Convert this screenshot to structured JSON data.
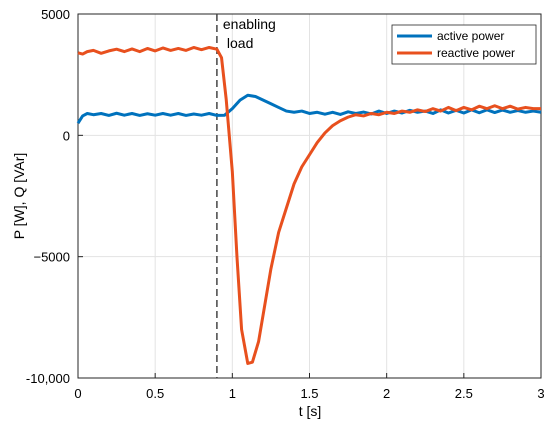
{
  "chart_data": {
    "type": "line",
    "xlabel": "t [s]",
    "ylabel": "P [W], Q [VAr]",
    "xlim": [
      0,
      3
    ],
    "ylim": [
      -10000,
      5000
    ],
    "x_ticks": [
      0,
      0.5,
      1,
      1.5,
      2,
      2.5,
      3
    ],
    "x_tick_labels": [
      "0",
      "0.5",
      "1",
      "1.5",
      "2",
      "2.5",
      "3"
    ],
    "y_ticks": [
      -10000,
      -5000,
      0,
      5000
    ],
    "y_tick_labels": [
      "-10,000",
      "−5000",
      "0",
      "5000"
    ],
    "grid": true,
    "legend_position": "top-right",
    "annotation": {
      "x": 0.9,
      "line1": "enabling",
      "line2": "load"
    },
    "series": [
      {
        "name": "active power",
        "color": "#0072BD",
        "points": [
          [
            0,
            500
          ],
          [
            0.03,
            800
          ],
          [
            0.06,
            900
          ],
          [
            0.1,
            850
          ],
          [
            0.15,
            900
          ],
          [
            0.2,
            820
          ],
          [
            0.25,
            910
          ],
          [
            0.3,
            830
          ],
          [
            0.35,
            900
          ],
          [
            0.4,
            820
          ],
          [
            0.45,
            890
          ],
          [
            0.5,
            830
          ],
          [
            0.55,
            900
          ],
          [
            0.6,
            830
          ],
          [
            0.65,
            900
          ],
          [
            0.7,
            820
          ],
          [
            0.75,
            880
          ],
          [
            0.8,
            830
          ],
          [
            0.85,
            900
          ],
          [
            0.9,
            820
          ],
          [
            0.95,
            830
          ],
          [
            1.0,
            1100
          ],
          [
            1.05,
            1450
          ],
          [
            1.1,
            1650
          ],
          [
            1.15,
            1600
          ],
          [
            1.2,
            1450
          ],
          [
            1.25,
            1300
          ],
          [
            1.3,
            1150
          ],
          [
            1.35,
            1000
          ],
          [
            1.4,
            950
          ],
          [
            1.45,
            1000
          ],
          [
            1.5,
            900
          ],
          [
            1.55,
            950
          ],
          [
            1.6,
            870
          ],
          [
            1.65,
            950
          ],
          [
            1.7,
            860
          ],
          [
            1.75,
            970
          ],
          [
            1.8,
            900
          ],
          [
            1.85,
            960
          ],
          [
            1.9,
            880
          ],
          [
            1.95,
            1000
          ],
          [
            2.0,
            900
          ],
          [
            2.05,
            1000
          ],
          [
            2.1,
            920
          ],
          [
            2.15,
            1030
          ],
          [
            2.2,
            950
          ],
          [
            2.25,
            1000
          ],
          [
            2.3,
            900
          ],
          [
            2.35,
            1050
          ],
          [
            2.4,
            920
          ],
          [
            2.45,
            1030
          ],
          [
            2.5,
            920
          ],
          [
            2.55,
            1050
          ],
          [
            2.6,
            930
          ],
          [
            2.65,
            1050
          ],
          [
            2.7,
            940
          ],
          [
            2.75,
            1040
          ],
          [
            2.8,
            950
          ],
          [
            2.85,
            1020
          ],
          [
            2.9,
            950
          ],
          [
            2.95,
            1000
          ],
          [
            3.0,
            950
          ]
        ]
      },
      {
        "name": "reactive power",
        "color": "#E8501E",
        "points": [
          [
            0,
            3400
          ],
          [
            0.03,
            3350
          ],
          [
            0.06,
            3450
          ],
          [
            0.1,
            3500
          ],
          [
            0.15,
            3380
          ],
          [
            0.2,
            3480
          ],
          [
            0.25,
            3550
          ],
          [
            0.3,
            3450
          ],
          [
            0.35,
            3560
          ],
          [
            0.4,
            3450
          ],
          [
            0.45,
            3580
          ],
          [
            0.5,
            3480
          ],
          [
            0.55,
            3600
          ],
          [
            0.6,
            3500
          ],
          [
            0.65,
            3580
          ],
          [
            0.7,
            3500
          ],
          [
            0.75,
            3620
          ],
          [
            0.8,
            3530
          ],
          [
            0.85,
            3620
          ],
          [
            0.9,
            3550
          ],
          [
            0.93,
            3200
          ],
          [
            0.96,
            1500
          ],
          [
            1.0,
            -1500
          ],
          [
            1.03,
            -5000
          ],
          [
            1.06,
            -8000
          ],
          [
            1.1,
            -9400
          ],
          [
            1.13,
            -9350
          ],
          [
            1.17,
            -8500
          ],
          [
            1.21,
            -7000
          ],
          [
            1.25,
            -5500
          ],
          [
            1.3,
            -4000
          ],
          [
            1.35,
            -3000
          ],
          [
            1.4,
            -2000
          ],
          [
            1.45,
            -1300
          ],
          [
            1.5,
            -800
          ],
          [
            1.55,
            -300
          ],
          [
            1.6,
            100
          ],
          [
            1.65,
            400
          ],
          [
            1.7,
            600
          ],
          [
            1.75,
            750
          ],
          [
            1.8,
            850
          ],
          [
            1.85,
            800
          ],
          [
            1.9,
            900
          ],
          [
            1.95,
            850
          ],
          [
            2.0,
            950
          ],
          [
            2.05,
            900
          ],
          [
            2.1,
            1000
          ],
          [
            2.15,
            950
          ],
          [
            2.2,
            1050
          ],
          [
            2.25,
            980
          ],
          [
            2.3,
            1100
          ],
          [
            2.35,
            1000
          ],
          [
            2.4,
            1150
          ],
          [
            2.45,
            1020
          ],
          [
            2.5,
            1150
          ],
          [
            2.55,
            1050
          ],
          [
            2.6,
            1200
          ],
          [
            2.65,
            1100
          ],
          [
            2.7,
            1220
          ],
          [
            2.75,
            1100
          ],
          [
            2.8,
            1200
          ],
          [
            2.85,
            1080
          ],
          [
            2.9,
            1150
          ],
          [
            2.95,
            1100
          ],
          [
            3.0,
            1100
          ]
        ]
      }
    ]
  }
}
